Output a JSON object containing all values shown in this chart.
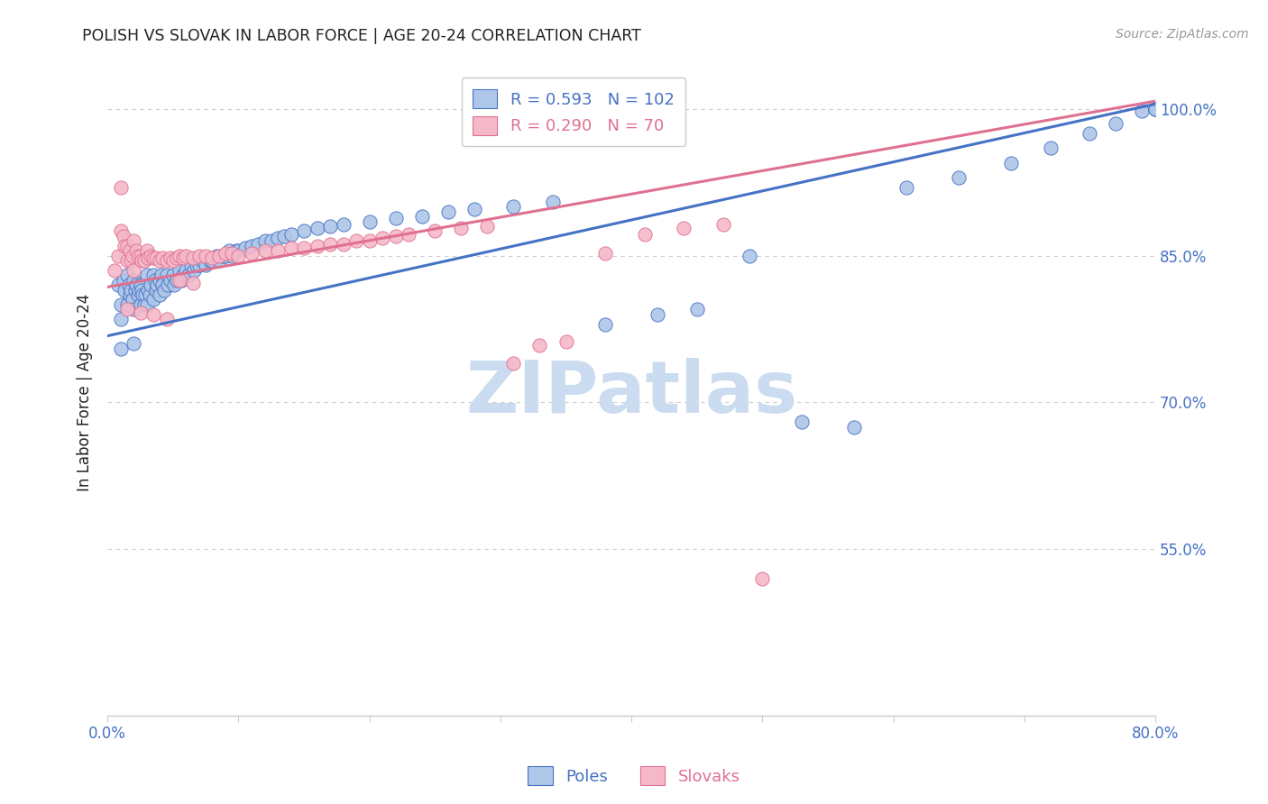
{
  "title": "POLISH VS SLOVAK IN LABOR FORCE | AGE 20-24 CORRELATION CHART",
  "source": "Source: ZipAtlas.com",
  "ylabel": "In Labor Force | Age 20-24",
  "x_min": 0.0,
  "x_max": 0.8,
  "y_min": 0.38,
  "y_max": 1.04,
  "y_ticks": [
    0.55,
    0.7,
    0.85,
    1.0
  ],
  "y_tick_labels": [
    "55.0%",
    "70.0%",
    "85.0%",
    "100.0%"
  ],
  "blue_R": 0.593,
  "blue_N": 102,
  "pink_R": 0.29,
  "pink_N": 70,
  "blue_color": "#aec6e8",
  "pink_color": "#f5b8c8",
  "blue_line_color": "#4472c4",
  "pink_line_color": "#e07090",
  "blue_trend_x": [
    0.0,
    0.8
  ],
  "blue_trend_y": [
    0.768,
    1.005
  ],
  "pink_trend_x": [
    0.0,
    0.8
  ],
  "pink_trend_y": [
    0.818,
    1.008
  ],
  "watermark_text": "ZIPatlas",
  "watermark_color": "#ccdcf0",
  "title_color": "#222222",
  "axis_label_color": "#4472c4",
  "grid_color": "#cccccc",
  "background_color": "#ffffff",
  "blue_scatter_x": [
    0.008,
    0.01,
    0.01,
    0.012,
    0.013,
    0.015,
    0.015,
    0.016,
    0.017,
    0.018,
    0.019,
    0.02,
    0.02,
    0.021,
    0.022,
    0.023,
    0.024,
    0.025,
    0.025,
    0.026,
    0.027,
    0.028,
    0.029,
    0.03,
    0.03,
    0.031,
    0.032,
    0.033,
    0.035,
    0.035,
    0.036,
    0.037,
    0.038,
    0.04,
    0.04,
    0.041,
    0.042,
    0.043,
    0.045,
    0.046,
    0.048,
    0.05,
    0.051,
    0.053,
    0.055,
    0.056,
    0.058,
    0.06,
    0.062,
    0.064,
    0.066,
    0.068,
    0.07,
    0.072,
    0.075,
    0.078,
    0.08,
    0.083,
    0.085,
    0.088,
    0.09,
    0.093,
    0.095,
    0.098,
    0.1,
    0.105,
    0.11,
    0.115,
    0.12,
    0.125,
    0.13,
    0.135,
    0.14,
    0.15,
    0.16,
    0.17,
    0.18,
    0.2,
    0.22,
    0.24,
    0.26,
    0.28,
    0.31,
    0.34,
    0.38,
    0.42,
    0.45,
    0.49,
    0.53,
    0.57,
    0.61,
    0.65,
    0.69,
    0.72,
    0.75,
    0.77,
    0.79,
    0.8,
    0.8,
    0.8,
    0.01,
    0.02
  ],
  "blue_scatter_y": [
    0.82,
    0.8,
    0.785,
    0.825,
    0.815,
    0.83,
    0.8,
    0.82,
    0.81,
    0.815,
    0.805,
    0.825,
    0.795,
    0.815,
    0.82,
    0.81,
    0.815,
    0.82,
    0.8,
    0.815,
    0.81,
    0.8,
    0.81,
    0.83,
    0.8,
    0.815,
    0.81,
    0.82,
    0.83,
    0.805,
    0.825,
    0.815,
    0.82,
    0.825,
    0.81,
    0.83,
    0.82,
    0.815,
    0.83,
    0.82,
    0.825,
    0.83,
    0.82,
    0.825,
    0.835,
    0.825,
    0.83,
    0.835,
    0.83,
    0.84,
    0.835,
    0.84,
    0.84,
    0.845,
    0.84,
    0.845,
    0.845,
    0.85,
    0.845,
    0.85,
    0.85,
    0.855,
    0.85,
    0.855,
    0.855,
    0.858,
    0.86,
    0.862,
    0.865,
    0.865,
    0.868,
    0.87,
    0.872,
    0.875,
    0.878,
    0.88,
    0.882,
    0.885,
    0.888,
    0.89,
    0.895,
    0.898,
    0.9,
    0.905,
    0.78,
    0.79,
    0.795,
    0.85,
    0.68,
    0.675,
    0.92,
    0.93,
    0.945,
    0.96,
    0.975,
    0.985,
    0.998,
    1.0,
    1.0,
    1.0,
    0.755,
    0.76
  ],
  "pink_scatter_x": [
    0.005,
    0.008,
    0.01,
    0.01,
    0.012,
    0.013,
    0.015,
    0.015,
    0.017,
    0.018,
    0.019,
    0.02,
    0.02,
    0.022,
    0.023,
    0.025,
    0.026,
    0.028,
    0.03,
    0.031,
    0.033,
    0.035,
    0.037,
    0.04,
    0.042,
    0.045,
    0.048,
    0.05,
    0.053,
    0.055,
    0.058,
    0.06,
    0.065,
    0.07,
    0.075,
    0.08,
    0.085,
    0.09,
    0.095,
    0.1,
    0.11,
    0.12,
    0.13,
    0.14,
    0.15,
    0.16,
    0.17,
    0.18,
    0.19,
    0.2,
    0.21,
    0.22,
    0.23,
    0.25,
    0.27,
    0.29,
    0.31,
    0.33,
    0.35,
    0.38,
    0.41,
    0.44,
    0.47,
    0.5,
    0.015,
    0.025,
    0.035,
    0.045,
    0.055,
    0.065
  ],
  "pink_scatter_y": [
    0.835,
    0.85,
    0.92,
    0.875,
    0.87,
    0.86,
    0.86,
    0.845,
    0.855,
    0.845,
    0.85,
    0.865,
    0.835,
    0.855,
    0.85,
    0.85,
    0.845,
    0.845,
    0.855,
    0.848,
    0.85,
    0.848,
    0.848,
    0.845,
    0.848,
    0.845,
    0.848,
    0.845,
    0.848,
    0.85,
    0.848,
    0.85,
    0.848,
    0.85,
    0.85,
    0.848,
    0.85,
    0.852,
    0.852,
    0.85,
    0.852,
    0.855,
    0.855,
    0.858,
    0.858,
    0.86,
    0.862,
    0.862,
    0.865,
    0.865,
    0.868,
    0.87,
    0.872,
    0.875,
    0.878,
    0.88,
    0.74,
    0.758,
    0.762,
    0.852,
    0.872,
    0.878,
    0.882,
    0.52,
    0.795,
    0.792,
    0.79,
    0.785,
    0.825,
    0.822
  ]
}
